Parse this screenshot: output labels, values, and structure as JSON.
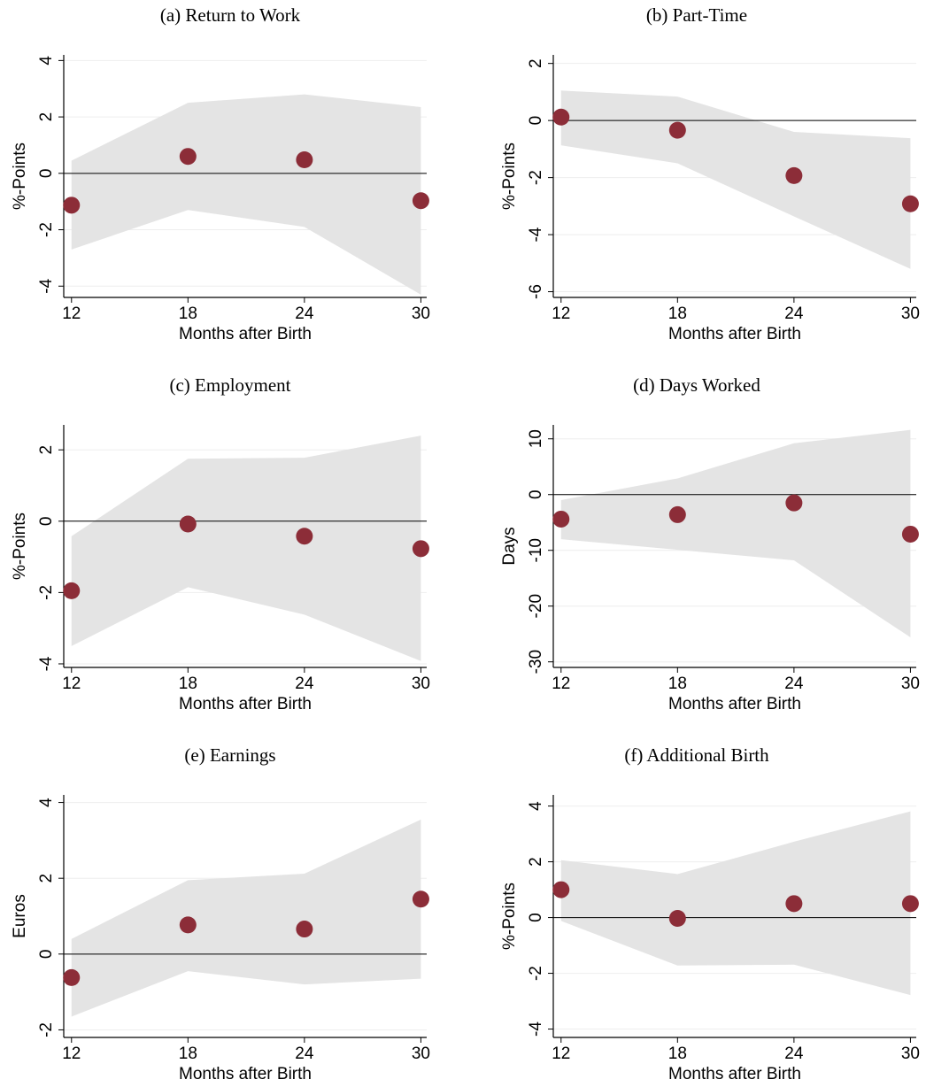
{
  "chart_data": [
    {
      "type": "scatter",
      "title": "(a) Return to Work",
      "x_label": "Months after Birth",
      "y_label": "%-Points",
      "x": [
        12,
        18,
        24,
        30
      ],
      "values": [
        -1.13,
        0.6,
        0.48,
        -0.97
      ],
      "lower": [
        -2.7,
        -1.3,
        -1.9,
        -4.3
      ],
      "upper": [
        0.45,
        2.5,
        2.8,
        2.35
      ],
      "reference_line": 0,
      "xlim": [
        11.6,
        30.3
      ],
      "xticks": [
        12,
        18,
        24,
        30
      ],
      "ylim": [
        -4.4,
        4.2
      ],
      "yticks": [
        -4,
        -2,
        0,
        2,
        4
      ],
      "color": "#8c2d38",
      "band_color": "#e4e4e4",
      "grid": true
    },
    {
      "type": "scatter",
      "title": "(b) Part-Time",
      "x_label": "Months after Birth",
      "y_label": "%-Points",
      "x": [
        12,
        18,
        24,
        30
      ],
      "values": [
        0.12,
        -0.34,
        -1.93,
        -2.92
      ],
      "lower": [
        -0.87,
        -1.5,
        -3.36,
        -5.2
      ],
      "upper": [
        1.05,
        0.84,
        -0.4,
        -0.62
      ],
      "reference_line": 0,
      "xlim": [
        11.6,
        30.3
      ],
      "xticks": [
        12,
        18,
        24,
        30
      ],
      "ylim": [
        -6.2,
        2.3
      ],
      "yticks": [
        -6,
        -4,
        -2,
        0,
        2
      ],
      "color": "#8c2d38",
      "band_color": "#e4e4e4",
      "grid": true
    },
    {
      "type": "scatter",
      "title": "(c) Employment",
      "x_label": "Months after Birth",
      "y_label": "%-Points",
      "x": [
        12,
        18,
        24,
        30
      ],
      "values": [
        -1.95,
        -0.08,
        -0.42,
        -0.77
      ],
      "lower": [
        -3.5,
        -1.85,
        -2.62,
        -3.92
      ],
      "upper": [
        -0.42,
        1.75,
        1.78,
        2.4
      ],
      "reference_line": 0,
      "xlim": [
        11.6,
        30.3
      ],
      "xticks": [
        12,
        18,
        24,
        30
      ],
      "ylim": [
        -4.1,
        2.7
      ],
      "yticks": [
        -4,
        -2,
        0,
        2
      ],
      "color": "#8c2d38",
      "band_color": "#e4e4e4",
      "grid": true
    },
    {
      "type": "scatter",
      "title": "(d) Days Worked",
      "x_label": "Months after Birth",
      "y_label": "Days",
      "x": [
        12,
        18,
        24,
        30
      ],
      "values": [
        -4.4,
        -3.6,
        -1.5,
        -7.1
      ],
      "lower": [
        -8,
        -9.9,
        -11.8,
        -25.6
      ],
      "upper": [
        -1,
        2.9,
        9.2,
        11.6
      ],
      "reference_line": 0,
      "xlim": [
        11.6,
        30.3
      ],
      "xticks": [
        12,
        18,
        24,
        30
      ],
      "ylim": [
        -31,
        12.5
      ],
      "yticks": [
        -30,
        -20,
        -10,
        0,
        10
      ],
      "color": "#8c2d38",
      "band_color": "#e4e4e4",
      "grid": true
    },
    {
      "type": "scatter",
      "title": "(e) Earnings",
      "x_label": "Months after Birth",
      "y_label": "Euros",
      "x": [
        12,
        18,
        24,
        30
      ],
      "values": [
        -0.62,
        0.77,
        0.66,
        1.45
      ],
      "lower": [
        -1.65,
        -0.45,
        -0.8,
        -0.65
      ],
      "upper": [
        0.4,
        1.95,
        2.12,
        3.55
      ],
      "reference_line": 0,
      "xlim": [
        11.6,
        30.3
      ],
      "xticks": [
        12,
        18,
        24,
        30
      ],
      "ylim": [
        -2.2,
        4.2
      ],
      "yticks": [
        -2,
        0,
        2,
        4
      ],
      "color": "#8c2d38",
      "band_color": "#e4e4e4",
      "grid": true
    },
    {
      "type": "scatter",
      "title": "(f) Additional Birth",
      "x_label": "Months after Birth",
      "y_label": "%-Points",
      "x": [
        12,
        18,
        24,
        30
      ],
      "values": [
        1.0,
        -0.03,
        0.5,
        0.5
      ],
      "lower": [
        -0.12,
        -1.72,
        -1.69,
        -2.78
      ],
      "upper": [
        2.06,
        1.56,
        2.72,
        3.81
      ],
      "reference_line": 0,
      "xlim": [
        11.6,
        30.3
      ],
      "xticks": [
        12,
        18,
        24,
        30
      ],
      "ylim": [
        -4.3,
        4.4
      ],
      "yticks": [
        -4,
        -2,
        0,
        2,
        4
      ],
      "color": "#8c2d38",
      "band_color": "#e4e4e4",
      "grid": true
    }
  ]
}
